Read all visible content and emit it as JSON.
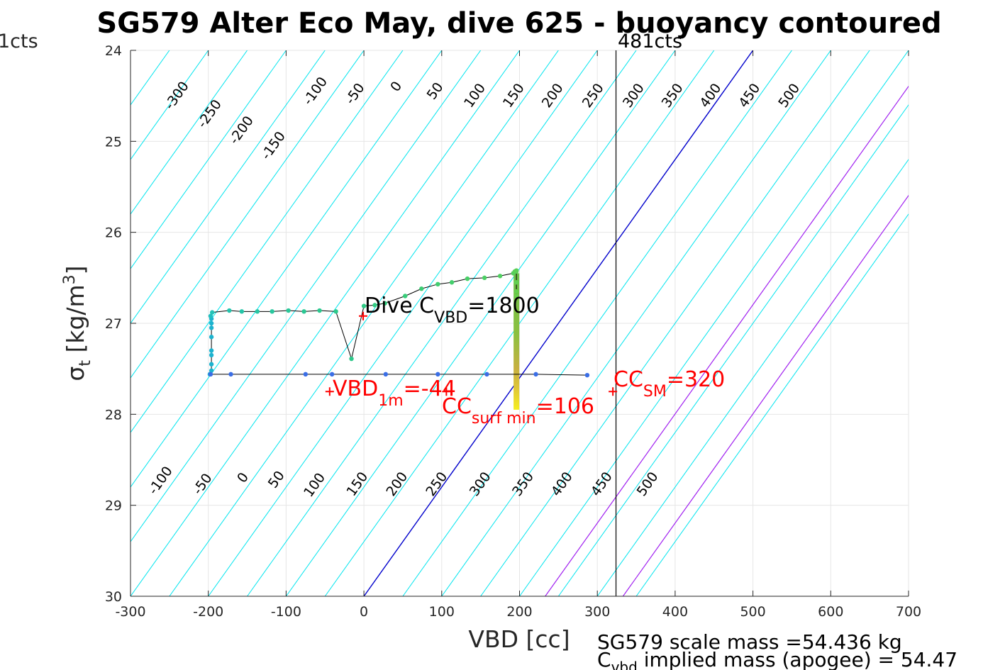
{
  "chart_data": {
    "type": "line",
    "title": "SG579 Alter Eco May, dive 625 - buoyancy contoured",
    "xlabel": "VBD [cc]",
    "ylabel": {
      "base": "σ",
      "sub": "t",
      "rest": " [kg/m",
      "sup": "3",
      "close": "]"
    },
    "xlim": [
      -300,
      700
    ],
    "ylim": [
      24,
      30
    ],
    "y_reversed": true,
    "grid": true,
    "xticks": [
      -300,
      -200,
      -100,
      0,
      100,
      200,
      300,
      400,
      500,
      600,
      700
    ],
    "yticks": [
      24,
      25,
      26,
      27,
      28,
      29,
      30
    ],
    "xtick_labels": [
      "-300",
      "-200",
      "-100",
      "0",
      "100",
      "200",
      "300",
      "400",
      "500",
      "600",
      "700"
    ],
    "ytick_labels": [
      "24",
      "25",
      "26",
      "27",
      "28",
      "29",
      "30"
    ],
    "contours": {
      "color": "#00e5ee",
      "zero_color": "#0000cc",
      "highlight_color": "#a020f0",
      "highlight_levels": [
        106,
        320
      ],
      "lines": [
        {
          "x_at_24": -500,
          "x_at_30": -1000
        },
        {
          "x_at_24": -450,
          "x_at_30": -950
        },
        {
          "x_at_24": -400,
          "x_at_30": -900
        },
        {
          "x_at_24": -350,
          "x_at_30": -850
        },
        {
          "x_at_24": -300,
          "x_at_30": -800
        },
        {
          "x_at_24": -250,
          "x_at_30": -750
        },
        {
          "x_at_24": -200,
          "x_at_30": -700
        },
        {
          "x_at_24": -150,
          "x_at_30": -650
        },
        {
          "x_at_24": -100,
          "x_at_30": -600
        },
        {
          "x_at_24": -50,
          "x_at_30": -550
        },
        {
          "x_at_24": 0,
          "x_at_30": -500
        },
        {
          "x_at_24": 50,
          "x_at_30": -450
        },
        {
          "x_at_24": 100,
          "x_at_30": -400
        },
        {
          "x_at_24": 150,
          "x_at_30": -350
        },
        {
          "x_at_24": 200,
          "x_at_30": -300
        },
        {
          "x_at_24": 250,
          "x_at_30": -250
        },
        {
          "x_at_24": 300,
          "x_at_30": -200
        },
        {
          "x_at_24": 350,
          "x_at_30": -150
        },
        {
          "x_at_24": 400,
          "x_at_30": -100
        },
        {
          "x_at_24": 450,
          "x_at_30": -50
        },
        {
          "x_at_24": 500,
          "x_at_30": 0
        },
        {
          "x_at_24": 550,
          "x_at_30": 50
        },
        {
          "x_at_24": 600,
          "x_at_30": 100
        },
        {
          "x_at_24": 650,
          "x_at_30": 150
        },
        {
          "x_at_24": 700,
          "x_at_30": 200
        },
        {
          "x_at_24": 750,
          "x_at_30": 250
        },
        {
          "x_at_24": 800,
          "x_at_30": 300
        },
        {
          "x_at_24": 850,
          "x_at_30": 350
        }
      ],
      "top_labels": [
        {
          "text": "-300",
          "x": -240,
          "y": 24.5
        },
        {
          "text": "-250",
          "x": -198,
          "y": 24.7
        },
        {
          "text": "-200",
          "x": -157,
          "y": 24.88
        },
        {
          "text": "-150",
          "x": -116,
          "y": 25.05
        },
        {
          "text": "-100",
          "x": -62,
          "y": 24.45
        },
        {
          "text": "-50",
          "x": -11,
          "y": 24.48
        },
        {
          "text": "0",
          "x": 42,
          "y": 24.4
        },
        {
          "text": "50",
          "x": 92,
          "y": 24.45
        },
        {
          "text": "100",
          "x": 143,
          "y": 24.5
        },
        {
          "text": "150",
          "x": 193,
          "y": 24.5
        },
        {
          "text": "200",
          "x": 243,
          "y": 24.5
        },
        {
          "text": "250",
          "x": 295,
          "y": 24.5
        },
        {
          "text": "300",
          "x": 347,
          "y": 24.5
        },
        {
          "text": "350",
          "x": 397,
          "y": 24.5
        },
        {
          "text": "400",
          "x": 446,
          "y": 24.5
        },
        {
          "text": "450",
          "x": 496,
          "y": 24.5
        },
        {
          "text": "500",
          "x": 547,
          "y": 24.5
        }
      ],
      "bottom_labels": [
        {
          "text": "-100",
          "x": -261,
          "y": 28.73
        },
        {
          "text": "-50",
          "x": -207,
          "y": 28.77
        },
        {
          "text": "0",
          "x": -155,
          "y": 28.7
        },
        {
          "text": "50",
          "x": -112,
          "y": 28.72
        },
        {
          "text": "100",
          "x": -63,
          "y": 28.78
        },
        {
          "text": "150",
          "x": -8,
          "y": 28.77
        },
        {
          "text": "200",
          "x": 43,
          "y": 28.77
        },
        {
          "text": "250",
          "x": 94,
          "y": 28.77
        },
        {
          "text": "300",
          "x": 150,
          "y": 28.77
        },
        {
          "text": "350",
          "x": 205,
          "y": 28.77
        },
        {
          "text": "400",
          "x": 255,
          "y": 28.77
        },
        {
          "text": "450",
          "x": 306,
          "y": 28.77
        },
        {
          "text": "500",
          "x": 365,
          "y": 28.77
        }
      ]
    },
    "series": [
      {
        "style": "line+markers",
        "line_color": "#000000",
        "x": [
          -198,
          -196,
          -196,
          -196,
          -196,
          -196,
          -196,
          -196,
          -196,
          -197,
          -195,
          -173,
          -157,
          -137,
          -118,
          -97,
          -77,
          -57,
          -36,
          -16,
          0,
          14,
          27,
          53,
          74,
          95,
          113,
          133,
          155,
          175,
          192,
          194,
          196,
          196,
          196,
          196,
          196
        ],
        "y": [
          27.56,
          27.52,
          27.45,
          27.35,
          27.3,
          27.15,
          27.05,
          27.0,
          26.95,
          26.92,
          26.88,
          26.86,
          26.87,
          26.87,
          26.87,
          26.86,
          26.87,
          26.86,
          26.87,
          27.39,
          26.81,
          26.8,
          26.78,
          26.7,
          26.62,
          26.57,
          26.55,
          26.51,
          26.5,
          26.48,
          26.45,
          26.43,
          26.42,
          26.43,
          26.55,
          26.65,
          26.7
        ],
        "point_colors": [
          "#1db3cf",
          "#1db3cf",
          "#1db3cf",
          "#1db3cf",
          "#1db3cf",
          "#1db3cf",
          "#1db3cf",
          "#1db3cf",
          "#1db3cf",
          "#20c0c0",
          "#22c3b8",
          "#24c4ad",
          "#25c5a8",
          "#27c6a3",
          "#28c79e",
          "#2ac899",
          "#2bc894",
          "#2cc990",
          "#2dca8c",
          "#2ec88a",
          "#30cb86",
          "#32cc82",
          "#34cc7e",
          "#38cd79",
          "#3ccd74",
          "#40ce70",
          "#44ce6c",
          "#48cf68",
          "#4ccf64",
          "#50cf60",
          "#54cf5c",
          "#58d058",
          "#5cd055",
          "#5ccf55",
          "#62d050",
          "#66d04d",
          "#6ad04a"
        ]
      },
      {
        "style": "line+markers",
        "line_color": "#000000",
        "x": [
          -197,
          -171,
          -75,
          -41,
          28,
          95,
          158,
          221,
          287
        ],
        "y": [
          27.56,
          27.56,
          27.56,
          27.56,
          27.56,
          27.56,
          27.56,
          27.56,
          27.57
        ],
        "point_colors": [
          "#3a6ee6",
          "#3a6ee6",
          "#3a6ee6",
          "#3a6ee6",
          "#3a6ee6",
          "#3a6ee6",
          "#3a6ee6",
          "#3a6ee6",
          "#3a6ee6"
        ]
      }
    ],
    "vertical_bar": {
      "x": 196,
      "y_from": 26.45,
      "y_to": 27.95,
      "colors": [
        "#6cc04a",
        "#8cc040",
        "#c8b040",
        "#e0c838",
        "#f5ee20"
      ]
    },
    "vertical_line": {
      "x": 324,
      "color": "#000000"
    },
    "markers": [
      {
        "name": "dive-cvbd",
        "x": -1,
        "y": 26.92,
        "color": "#ff0000"
      },
      {
        "name": "vbd-1m",
        "x": -44,
        "y": 27.75,
        "color": "#ff0000"
      },
      {
        "name": "cc-surf-min",
        "x": 106,
        "y": 27.75,
        "color": "#ff0000"
      },
      {
        "name": "cc-sm",
        "x": 320,
        "y": 27.75,
        "color": "#ff0000"
      }
    ],
    "annotations": {
      "dive_cvbd": {
        "base": "Dive C",
        "sub": "VBD",
        "rest": "=1800",
        "color": "#000000"
      },
      "vbd_1m": {
        "base": "VBD",
        "sub": "1m",
        "rest": "=-44",
        "color": "#ff0000"
      },
      "cc_surf_min": {
        "base": "CC",
        "sub": "surf min",
        "rest": "=106",
        "color": "#ff0000"
      },
      "cc_sm": {
        "base": "CC",
        "sub": "SM",
        "rest": "=320",
        "color": "#ff0000"
      }
    },
    "count_labels": {
      "left": "1cts",
      "right": "481cts"
    },
    "footer": {
      "line1": "SG579 scale mass =54.436 kg",
      "line2_base": "C",
      "line2_sub": "vbd",
      "line2_rest": " implied mass (apogee) = 54.47"
    }
  }
}
